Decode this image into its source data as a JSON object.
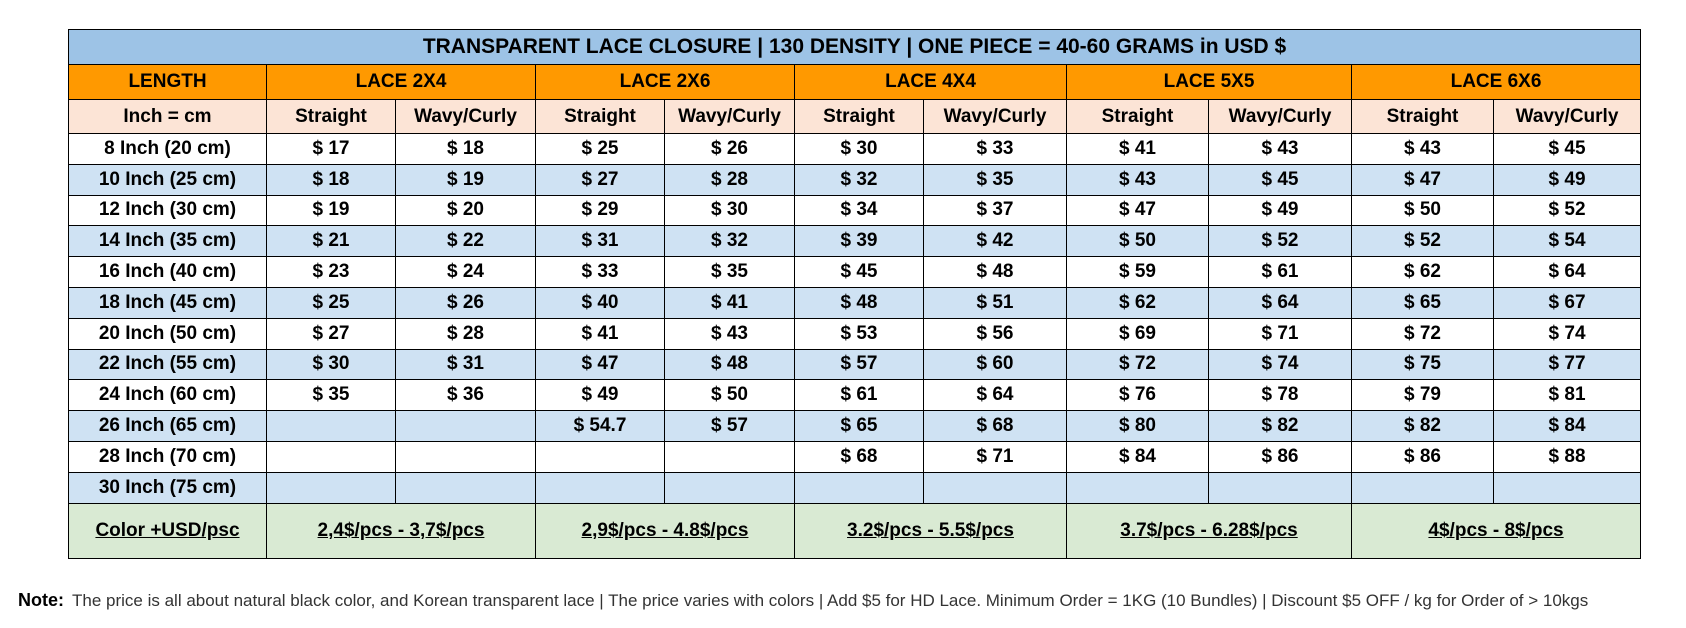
{
  "title": "TRANSPARENT LACE CLOSURE | 130 DENSITY | ONE PIECE = 40-60 GRAMS in USD $",
  "length_header": "LENGTH",
  "unit_header": "Inch = cm",
  "groups": [
    "LACE 2X4",
    "LACE 2X6",
    "LACE 4X4",
    "LACE 5X5",
    "LACE  6X6"
  ],
  "sub_headers": [
    "Straight",
    "Wavy/Curly"
  ],
  "rows": [
    {
      "length": "8 Inch (20 cm)",
      "prices": [
        "$ 17",
        "$ 18",
        "$ 25",
        "$ 26",
        "$ 30",
        "$ 33",
        "$ 41",
        "$ 43",
        "$ 43",
        "$ 45"
      ]
    },
    {
      "length": "10 Inch (25 cm)",
      "prices": [
        "$ 18",
        "$ 19",
        "$ 27",
        "$ 28",
        "$ 32",
        "$ 35",
        "$ 43",
        "$ 45",
        "$ 47",
        "$ 49"
      ]
    },
    {
      "length": "12 Inch (30 cm)",
      "prices": [
        "$ 19",
        "$ 20",
        "$ 29",
        "$ 30",
        "$ 34",
        "$ 37",
        "$ 47",
        "$ 49",
        "$ 50",
        "$ 52"
      ]
    },
    {
      "length": "14 Inch (35 cm)",
      "prices": [
        "$ 21",
        "$ 22",
        "$ 31",
        "$ 32",
        "$ 39",
        "$ 42",
        "$ 50",
        "$ 52",
        "$ 52",
        "$ 54"
      ]
    },
    {
      "length": "16 Inch (40 cm)",
      "prices": [
        "$ 23",
        "$ 24",
        "$ 33",
        "$ 35",
        "$ 45",
        "$ 48",
        "$ 59",
        "$ 61",
        "$ 62",
        "$ 64"
      ]
    },
    {
      "length": "18 Inch (45 cm)",
      "prices": [
        "$ 25",
        "$ 26",
        "$ 40",
        "$ 41",
        "$ 48",
        "$ 51",
        "$ 62",
        "$ 64",
        "$ 65",
        "$ 67"
      ]
    },
    {
      "length": "20 Inch (50 cm)",
      "prices": [
        "$ 27",
        "$ 28",
        "$ 41",
        "$ 43",
        "$ 53",
        "$ 56",
        "$ 69",
        "$ 71",
        "$ 72",
        "$ 74"
      ]
    },
    {
      "length": "22 Inch (55 cm)",
      "prices": [
        "$ 30",
        "$ 31",
        "$ 47",
        "$ 48",
        "$ 57",
        "$ 60",
        "$ 72",
        "$ 74",
        "$ 75",
        "$ 77"
      ]
    },
    {
      "length": "24 Inch (60 cm)",
      "prices": [
        "$ 35",
        "$ 36",
        "$ 49",
        "$ 50",
        "$ 61",
        "$ 64",
        "$ 76",
        "$ 78",
        "$ 79",
        "$ 81"
      ]
    },
    {
      "length": "26 Inch (65 cm)",
      "prices": [
        "",
        "",
        "$ 54.7",
        "$ 57",
        "$ 65",
        "$ 68",
        "$ 80",
        "$ 82",
        "$ 82",
        "$ 84"
      ]
    },
    {
      "length": "28 Inch (70 cm)",
      "prices": [
        "",
        "",
        "",
        "",
        "$ 68",
        "$ 71",
        "$ 84",
        "$ 86",
        "$ 86",
        "$ 88"
      ]
    },
    {
      "length": "30 Inch (75 cm)",
      "prices": [
        "",
        "",
        "",
        "",
        "",
        "",
        "",
        "",
        "",
        ""
      ]
    }
  ],
  "color_row": {
    "label": "Color +USD/psc",
    "values": [
      "2,4$/pcs - 3,7$/pcs",
      "2,9$/pcs - 4.8$/pcs",
      "3.2$/pcs - 5.5$/pcs",
      "3.7$/pcs - 6.28$/pcs",
      "4$/pcs - 8$/pcs"
    ]
  },
  "note": {
    "label": "Note:",
    "text": "The price is all about natural black color, and Korean transparent lace | The price varies with colors |  Add $5 for HD Lace. Minimum Order = 1KG (10 Bundles) | Discount $5 OFF / kg for Order of > 10kgs"
  },
  "colors": {
    "title_bg": "#9dc3e6",
    "group_bg": "#ff9900",
    "sub_bg": "#fce4d6",
    "stripe_bg": "#cfe2f3",
    "color_row_bg": "#d9ead3"
  }
}
